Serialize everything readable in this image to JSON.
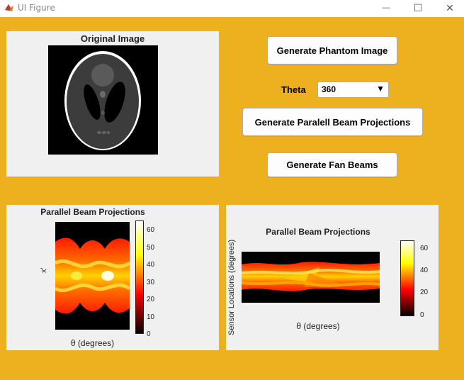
{
  "window": {
    "title": "UI Figure",
    "icon": "matlab-icon",
    "controls": {
      "minimize": "—",
      "maximize": "☐",
      "close": "✕"
    }
  },
  "colors": {
    "background": "#EDB120",
    "panel": "#f0f0f0"
  },
  "controls": {
    "generate_phantom_label": "Generate Phantom Image",
    "theta_label": "Theta",
    "theta_value": "360",
    "generate_parallel_label": "Generate Paralell Beam Projections",
    "generate_fan_label": "Generate Fan Beams"
  },
  "original_image": {
    "title": "Original Image"
  },
  "parallel_panel": {
    "title": "Parallel Beam Projections",
    "xlabel": "θ  (degrees)",
    "ylabel": "x'",
    "colorbar_ticks": [
      "60",
      "50",
      "40",
      "30",
      "20",
      "10",
      "0"
    ]
  },
  "fan_panel": {
    "title": "Parallel Beam Projections",
    "xlabel": "θ  (degrees)",
    "ylabel": "Sensor Locations (degrees)",
    "colorbar_ticks": [
      "60",
      "40",
      "20",
      "0"
    ]
  }
}
